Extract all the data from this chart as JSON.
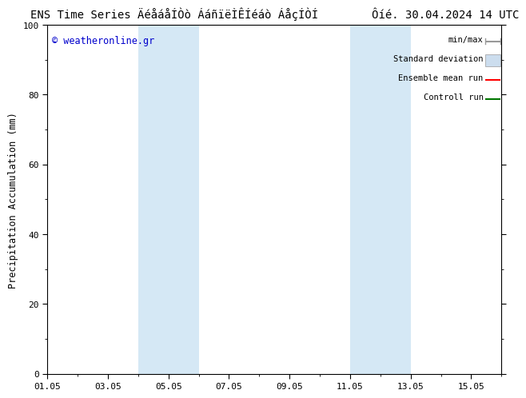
{
  "title_left": "ENS Time Series ÄéåáåÍÒò ÁáñïëÌÊÍéáò ÁåçÍÒÍ",
  "title_right": "Ôíé. 30.04.2024 14 UTC",
  "ylabel": "Precipitation Accumulation (mm)",
  "ylim": [
    0,
    100
  ],
  "xtick_positions": [
    1,
    3,
    5,
    7,
    9,
    11,
    13,
    15
  ],
  "xtick_labels": [
    "01.05",
    "03.05",
    "05.05",
    "07.05",
    "09.05",
    "11.05",
    "13.05",
    "15.05"
  ],
  "xlim": [
    1,
    16
  ],
  "ytick_labels": [
    0,
    20,
    40,
    60,
    80,
    100
  ],
  "watermark": "© weatheronline.gr",
  "watermark_color": "#0000cc",
  "background_color": "#ffffff",
  "plot_bg_color": "#ffffff",
  "shaded_bands": [
    {
      "xstart": 4.0,
      "xend": 6.0,
      "color": "#d5e8f5"
    },
    {
      "xstart": 11.0,
      "xend": 13.0,
      "color": "#d5e8f5"
    }
  ],
  "legend_entries": [
    {
      "label": "min/max",
      "color": "#999999",
      "style": "line"
    },
    {
      "label": "Standard deviation",
      "color": "#ccddee",
      "style": "fill"
    },
    {
      "label": "Ensemble mean run",
      "color": "#ff0000",
      "style": "line"
    },
    {
      "label": "Controll run",
      "color": "#007700",
      "style": "line"
    }
  ],
  "spine_color": "#000000",
  "tick_color": "#000000",
  "font_size_title": 10,
  "font_size_axis": 8.5,
  "font_size_tick": 8,
  "font_size_legend": 7.5,
  "font_size_watermark": 8.5
}
